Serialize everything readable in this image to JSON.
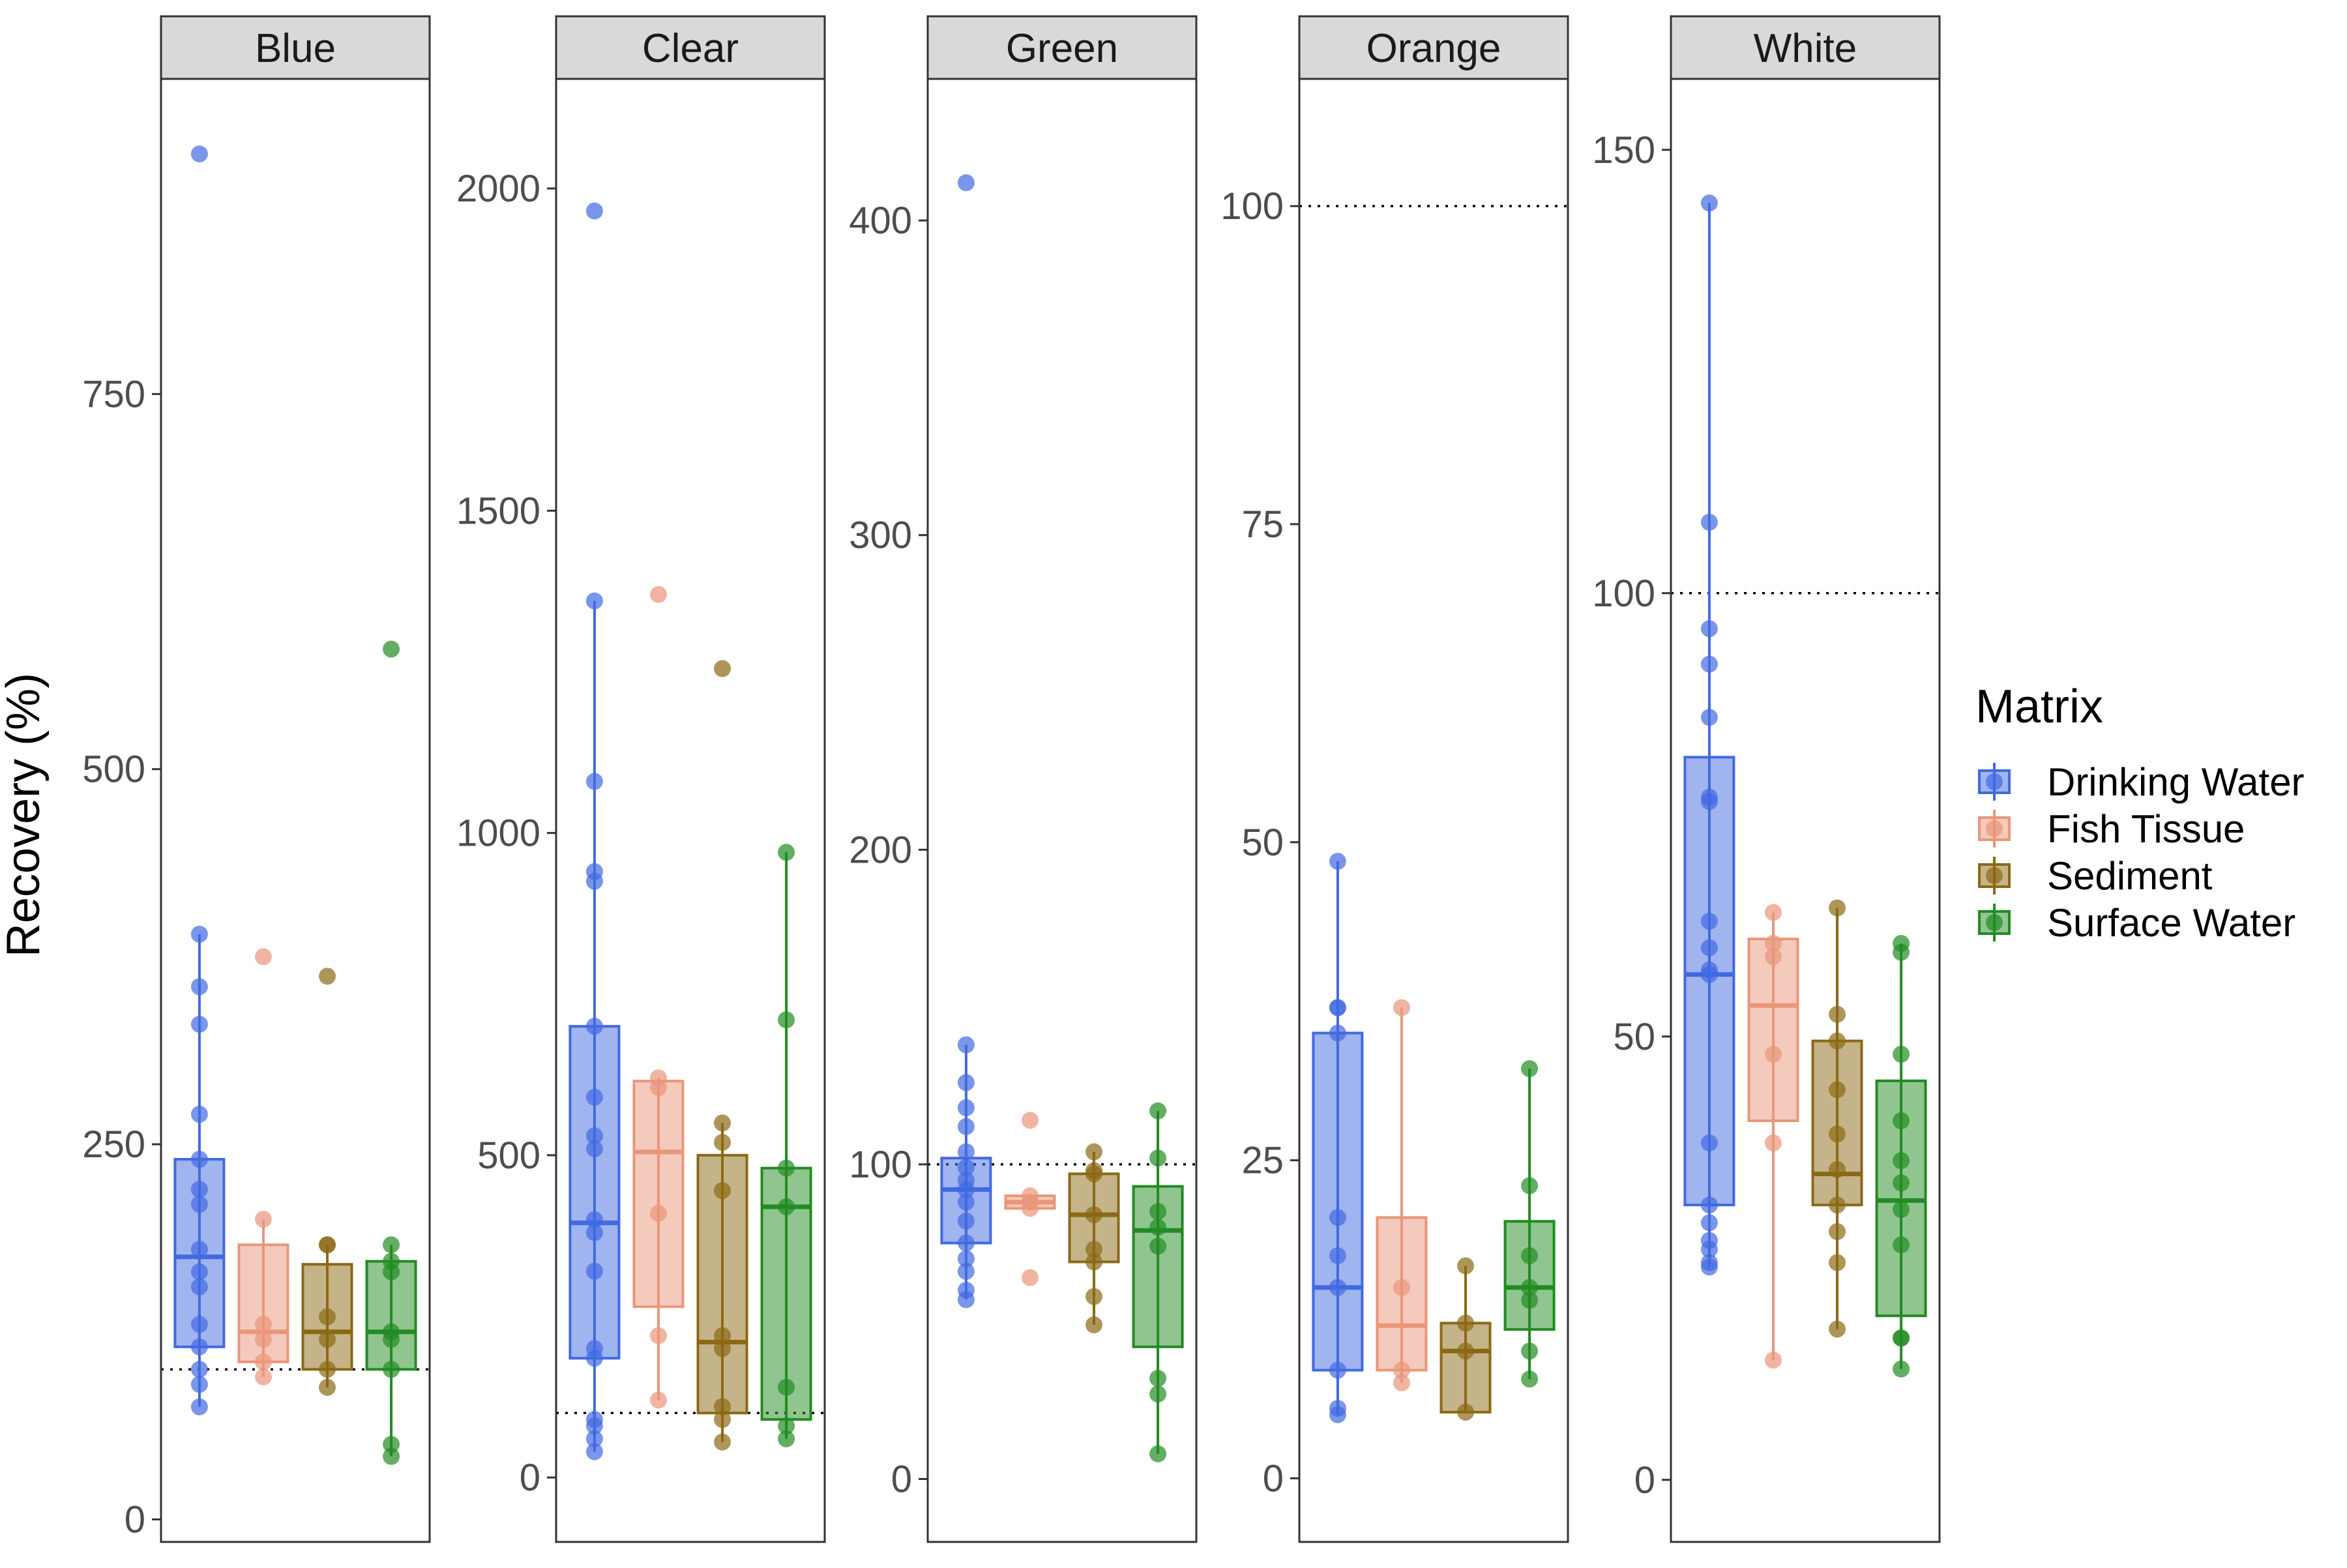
{
  "chart_data": {
    "type": "box",
    "ylabel": "Recovery (%)",
    "reference_line": {
      "y": 100,
      "style": "dotted",
      "color": "#000000"
    },
    "legend": {
      "title": "Matrix",
      "placement": "right",
      "entries": [
        "Drinking Water",
        "Fish Tissue",
        "Sediment",
        "Surface Water"
      ]
    },
    "series": [
      {
        "name": "Drinking Water",
        "color": "#4169e1"
      },
      {
        "name": "Fish Tissue",
        "color": "#e9967a"
      },
      {
        "name": "Sediment",
        "color": "#8b6914"
      },
      {
        "name": "Surface Water",
        "color": "#228b22"
      }
    ],
    "facets": [
      {
        "label": "Blue",
        "ylim": [
          -15,
          960
        ],
        "yticks": [
          0,
          250,
          500,
          750
        ],
        "groups": [
          {
            "series": "Drinking Water",
            "q1": 115,
            "median": 175,
            "q3": 240,
            "whisker_low": 75,
            "whisker_high": 390,
            "points": [
              910,
              390,
              355,
              330,
              270,
              240,
              220,
              210,
              180,
              165,
              155,
              130,
              115,
              100,
              90,
              75
            ]
          },
          {
            "series": "Fish Tissue",
            "q1": 105,
            "median": 125,
            "q3": 183,
            "whisker_low": 95,
            "whisker_high": 200,
            "points": [
              375,
              200,
              130,
              120,
              105,
              95
            ]
          },
          {
            "series": "Sediment",
            "q1": 100,
            "median": 125,
            "q3": 170,
            "whisker_low": 88,
            "whisker_high": 183,
            "points": [
              362,
              183,
              183,
              135,
              120,
              100,
              88
            ]
          },
          {
            "series": "Surface Water",
            "q1": 100,
            "median": 125,
            "q3": 172,
            "whisker_low": 42,
            "whisker_high": 183,
            "points": [
              580,
              183,
              172,
              165,
              125,
              120,
              100,
              50,
              42
            ]
          }
        ]
      },
      {
        "label": "Clear",
        "ylim": [
          -100,
          2170
        ],
        "yticks": [
          0,
          500,
          1000,
          1500,
          2000
        ],
        "groups": [
          {
            "series": "Drinking Water",
            "q1": 185,
            "median": 395,
            "q3": 700,
            "whisker_low": 40,
            "whisker_high": 1360,
            "points": [
              1965,
              1360,
              1080,
              940,
              925,
              700,
              590,
              530,
              510,
              400,
              380,
              320,
              200,
              185,
              90,
              80,
              60,
              40
            ]
          },
          {
            "series": "Fish Tissue",
            "q1": 265,
            "median": 505,
            "q3": 615,
            "whisker_low": 120,
            "whisker_high": 620,
            "points": [
              1370,
              620,
              605,
              410,
              220,
              120
            ]
          },
          {
            "series": "Sediment",
            "q1": 100,
            "median": 210,
            "q3": 500,
            "whisker_low": 55,
            "whisker_high": 550,
            "points": [
              1255,
              550,
              520,
              445,
              220,
              200,
              110,
              90,
              55
            ]
          },
          {
            "series": "Surface Water",
            "q1": 90,
            "median": 420,
            "q3": 480,
            "whisker_low": 60,
            "whisker_high": 970,
            "points": [
              970,
              710,
              480,
              420,
              140,
              80,
              60
            ]
          }
        ]
      },
      {
        "label": "Green",
        "ylim": [
          -20,
          445
        ],
        "yticks": [
          0,
          100,
          200,
          300,
          400
        ],
        "groups": [
          {
            "series": "Drinking Water",
            "q1": 75,
            "median": 92,
            "q3": 102,
            "whisker_low": 57,
            "whisker_high": 138,
            "points": [
              412,
              138,
              126,
              118,
              112,
              104,
              99,
              95,
              92,
              88,
              82,
              75,
              70,
              66,
              60,
              57
            ]
          },
          {
            "series": "Fish Tissue",
            "q1": 86,
            "median": 88,
            "q3": 90,
            "whisker_low": 86,
            "whisker_high": 90,
            "points": [
              114,
              90,
              88,
              86,
              64
            ]
          },
          {
            "series": "Sediment",
            "q1": 69,
            "median": 84,
            "q3": 97,
            "whisker_low": 49,
            "whisker_high": 104,
            "points": [
              104,
              98,
              97,
              84,
              73,
              69,
              58,
              49
            ]
          },
          {
            "series": "Surface Water",
            "q1": 42,
            "median": 79,
            "q3": 93,
            "whisker_low": 8,
            "whisker_high": 117,
            "points": [
              117,
              102,
              85,
              80,
              74,
              32,
              27,
              8
            ]
          }
        ]
      },
      {
        "label": "Orange",
        "ylim": [
          -5,
          110
        ],
        "yticks": [
          0,
          25,
          50,
          75,
          100
        ],
        "groups": [
          {
            "series": "Drinking Water",
            "q1": 8.5,
            "median": 15,
            "q3": 35,
            "whisker_low": 5,
            "whisker_high": 48.5,
            "points": [
              48.5,
              37,
              37,
              35,
              20.5,
              17.5,
              15,
              8.5,
              5.5,
              5
            ]
          },
          {
            "series": "Fish Tissue",
            "q1": 8.5,
            "median": 12,
            "q3": 20.5,
            "whisker_low": 7.5,
            "whisker_high": 37,
            "points": [
              37,
              15,
              8.5,
              7.5
            ]
          },
          {
            "series": "Sediment",
            "q1": 5.2,
            "median": 10,
            "q3": 12.2,
            "whisker_low": 5.2,
            "whisker_high": 16.7,
            "points": [
              16.7,
              12.2,
              10,
              5.2
            ]
          },
          {
            "series": "Surface Water",
            "q1": 11.7,
            "median": 15,
            "q3": 20.2,
            "whisker_low": 7.8,
            "whisker_high": 32.2,
            "points": [
              32.2,
              23,
              17.5,
              15,
              14,
              10,
              7.8
            ]
          }
        ]
      },
      {
        "label": "White",
        "ylim": [
          -7,
          158
        ],
        "yticks": [
          0,
          50,
          100,
          150
        ],
        "groups": [
          {
            "series": "Drinking Water",
            "q1": 31,
            "median": 57,
            "q3": 81.5,
            "whisker_low": 24,
            "whisker_high": 144,
            "points": [
              144,
              108,
              96,
              92,
              86,
              77,
              76.5,
              63,
              60,
              57.5,
              57,
              38,
              31,
              29,
              27,
              26,
              24.5,
              24
            ]
          },
          {
            "series": "Fish Tissue",
            "q1": 40.5,
            "median": 53.5,
            "q3": 61,
            "whisker_low": 13.5,
            "whisker_high": 64,
            "points": [
              64,
              60.5,
              59,
              48,
              38,
              13.5
            ]
          },
          {
            "series": "Sediment",
            "q1": 31,
            "median": 34.5,
            "q3": 49.5,
            "whisker_low": 17,
            "whisker_high": 64.5,
            "points": [
              64.5,
              52.5,
              49.5,
              44,
              39,
              35,
              31,
              28,
              24.5,
              17
            ]
          },
          {
            "series": "Surface Water",
            "q1": 18.5,
            "median": 31.5,
            "q3": 45,
            "whisker_low": 12.5,
            "whisker_high": 60.5,
            "points": [
              60.5,
              59.5,
              48,
              40.5,
              36,
              33.5,
              30.5,
              26.5,
              16,
              16,
              12.5
            ]
          }
        ]
      }
    ]
  }
}
